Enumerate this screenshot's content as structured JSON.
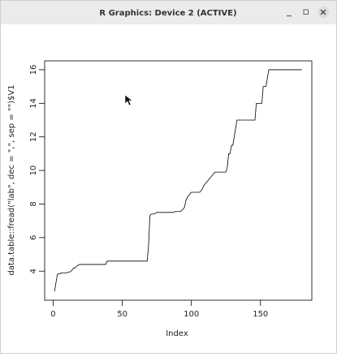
{
  "window": {
    "title": "R Graphics: Device 2 (ACTIVE)"
  },
  "chart_data": {
    "type": "line",
    "xlabel": "Index",
    "ylabel": "data.table::fread(\"lab\", dec = \",\", sep = \"\")$V1",
    "color": "#000000",
    "xlim": [
      -6.16,
      187.16
    ],
    "xticks": [
      0,
      50,
      100,
      150
    ],
    "ylim": [
      2.27,
      16.53
    ],
    "yticks": [
      4,
      6,
      8,
      10,
      12,
      14,
      16
    ],
    "x": [
      1,
      2,
      3,
      4,
      5,
      6,
      7,
      8,
      9,
      10,
      11,
      12,
      13,
      14,
      15,
      16,
      17,
      18,
      19,
      20,
      21,
      22,
      23,
      24,
      25,
      26,
      27,
      28,
      29,
      30,
      31,
      32,
      33,
      34,
      35,
      36,
      37,
      38,
      39,
      40,
      41,
      42,
      43,
      44,
      45,
      46,
      47,
      48,
      49,
      50,
      51,
      52,
      53,
      54,
      55,
      56,
      57,
      58,
      59,
      60,
      61,
      62,
      63,
      64,
      65,
      66,
      67,
      68,
      69,
      70,
      71,
      72,
      73,
      74,
      75,
      76,
      77,
      78,
      79,
      80,
      81,
      82,
      83,
      84,
      85,
      86,
      87,
      88,
      89,
      90,
      91,
      92,
      93,
      94,
      95,
      96,
      97,
      98,
      99,
      100,
      101,
      102,
      103,
      104,
      105,
      106,
      107,
      108,
      109,
      110,
      111,
      112,
      113,
      114,
      115,
      116,
      117,
      118,
      119,
      120,
      121,
      122,
      123,
      124,
      125,
      126,
      127,
      128,
      129,
      130,
      131,
      132,
      133,
      134,
      135,
      136,
      137,
      138,
      139,
      140,
      141,
      142,
      143,
      144,
      145,
      146,
      147,
      148,
      149,
      150,
      151,
      152,
      153,
      154,
      155,
      156,
      157,
      158,
      159,
      160,
      161,
      162,
      163,
      164,
      165,
      166,
      167,
      168,
      169,
      170,
      171,
      172,
      173,
      174,
      175,
      176,
      177,
      178,
      179,
      180
    ],
    "values": [
      2.8,
      3.3,
      3.8,
      3.85,
      3.85,
      3.9,
      3.9,
      3.9,
      3.9,
      3.9,
      3.95,
      3.95,
      4,
      4.1,
      4.2,
      4.2,
      4.3,
      4.35,
      4.4,
      4.4,
      4.4,
      4.4,
      4.4,
      4.4,
      4.4,
      4.4,
      4.4,
      4.4,
      4.4,
      4.4,
      4.4,
      4.4,
      4.4,
      4.4,
      4.4,
      4.4,
      4.4,
      4.4,
      4.6,
      4.6,
      4.6,
      4.6,
      4.6,
      4.6,
      4.6,
      4.6,
      4.6,
      4.6,
      4.6,
      4.6,
      4.6,
      4.6,
      4.6,
      4.6,
      4.6,
      4.6,
      4.6,
      4.6,
      4.6,
      4.6,
      4.6,
      4.6,
      4.6,
      4.6,
      4.6,
      4.6,
      4.6,
      4.6,
      5.5,
      7.3,
      7.4,
      7.4,
      7.4,
      7.45,
      7.5,
      7.5,
      7.5,
      7.5,
      7.5,
      7.5,
      7.5,
      7.5,
      7.5,
      7.5,
      7.5,
      7.5,
      7.5,
      7.55,
      7.55,
      7.55,
      7.55,
      7.55,
      7.6,
      7.7,
      7.8,
      8.2,
      8.4,
      8.5,
      8.6,
      8.7,
      8.7,
      8.7,
      8.7,
      8.7,
      8.7,
      8.7,
      8.8,
      8.9,
      9.1,
      9.2,
      9.3,
      9.4,
      9.5,
      9.6,
      9.7,
      9.8,
      9.9,
      9.9,
      9.9,
      9.9,
      9.9,
      9.9,
      9.9,
      9.9,
      9.9,
      10.2,
      11,
      11,
      11.5,
      11.5,
      12,
      12.5,
      13,
      13,
      13,
      13,
      13,
      13,
      13,
      13,
      13,
      13,
      13,
      13,
      13,
      13,
      14,
      14,
      14,
      14,
      14,
      15,
      15,
      15,
      15.5,
      16,
      16,
      16,
      16,
      16,
      16,
      16,
      16,
      16,
      16,
      16,
      16,
      16,
      16,
      16,
      16,
      16,
      16,
      16,
      16,
      16,
      16,
      16,
      16,
      16
    ]
  }
}
